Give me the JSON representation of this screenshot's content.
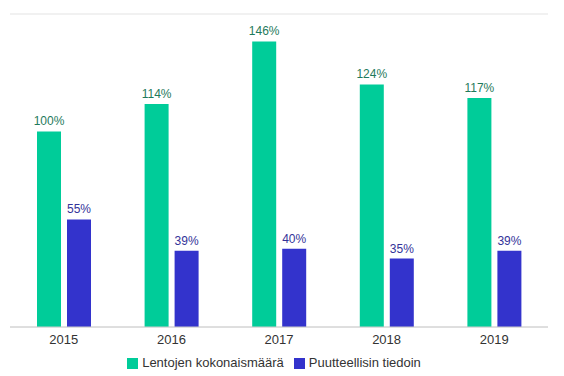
{
  "chart_data": {
    "type": "bar",
    "categories": [
      "2015",
      "2016",
      "2017",
      "2018",
      "2019"
    ],
    "series": [
      {
        "name": "Lentojen kokonaismäärä",
        "color": "#00cc99",
        "values": [
          100,
          114,
          146,
          124,
          117
        ],
        "value_labels": [
          "100%",
          "114%",
          "146%",
          "124%",
          "117%"
        ]
      },
      {
        "name": "Puutteellisin tiedoin",
        "color": "#3333cc",
        "values": [
          55,
          39,
          40,
          35,
          39
        ],
        "value_labels": [
          "55%",
          "39%",
          "40%",
          "35%",
          "39%"
        ]
      }
    ],
    "ylim": [
      0,
      160
    ],
    "yticks": [
      0,
      20,
      40,
      60,
      80,
      100,
      120,
      140,
      160
    ],
    "grid": true,
    "legend": "bottom",
    "data_labels": true,
    "tick_labels": "x"
  }
}
